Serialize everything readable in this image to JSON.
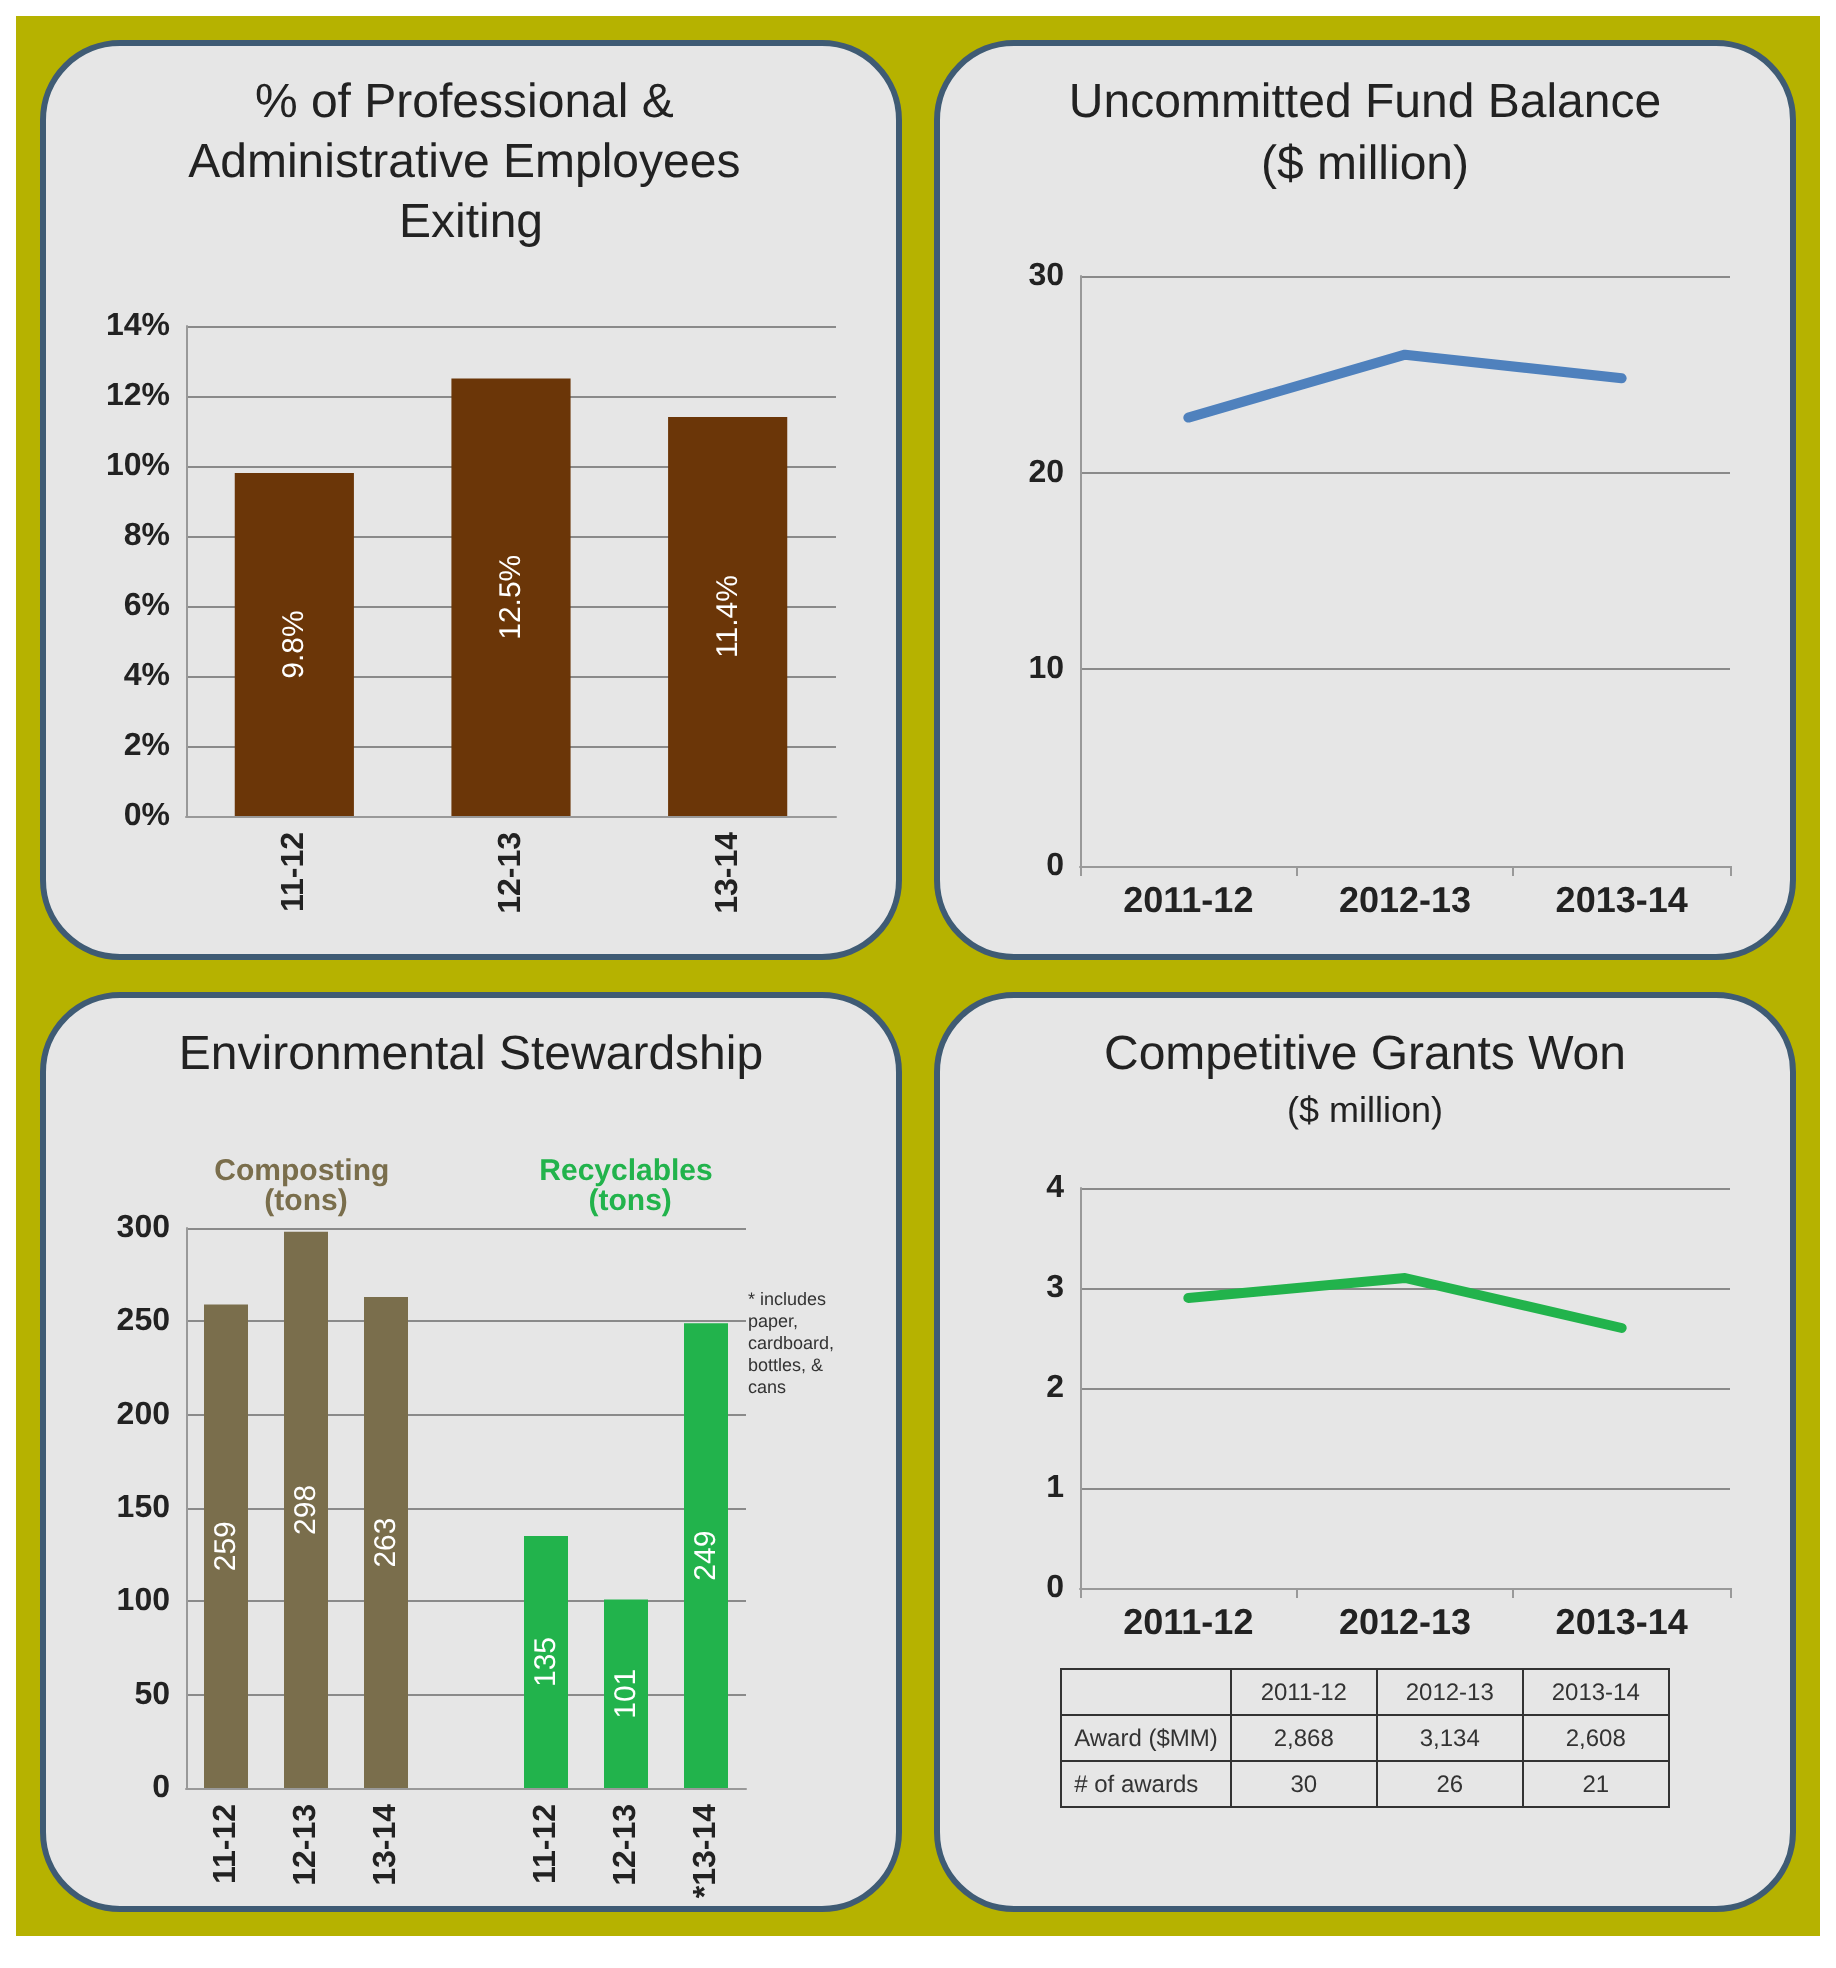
{
  "chart_data": [
    {
      "type": "bar",
      "title": "% of Professional & Administrative Employees Exiting",
      "categories": [
        "11-12",
        "12-13",
        "13-14"
      ],
      "values": [
        9.8,
        12.5,
        11.4
      ],
      "color": "#6b3608",
      "value_labels": [
        "9.8%",
        "12.5%",
        "11.4%"
      ],
      "ylim": [
        0,
        14
      ],
      "yticks": [
        {
          "value": 0,
          "label": "0%"
        },
        {
          "value": 2,
          "label": "2%"
        },
        {
          "value": 4,
          "label": "4%"
        },
        {
          "value": 6,
          "label": "6%"
        },
        {
          "value": 8,
          "label": "8%"
        },
        {
          "value": 10,
          "label": "10%"
        },
        {
          "value": 12,
          "label": "12%"
        },
        {
          "value": 14,
          "label": "14%"
        }
      ],
      "grid": "y"
    },
    {
      "type": "line",
      "title": "Uncommitted Fund Balance",
      "subtitle": "($ million)",
      "categories": [
        "2011-12",
        "2012-13",
        "2013-14"
      ],
      "values": [
        22.8,
        26.0,
        24.8
      ],
      "color": "#4f81bd",
      "ylim": [
        0,
        30
      ],
      "yticks": [
        0,
        10,
        20,
        30
      ],
      "grid": "y",
      "marker": "none"
    },
    {
      "type": "bar",
      "title": "Environmental Stewardship",
      "categories": [
        "11-12",
        "12-13",
        "13-14",
        null,
        "11-12",
        "12-13",
        "*13-14"
      ],
      "series": [
        {
          "name": "Composting (tons)",
          "color": "#7a6e4c",
          "values": [
            259,
            298,
            263,
            null,
            null,
            null,
            null
          ]
        },
        {
          "name": "Recyclables (tons)",
          "color": "#22b34c",
          "values": [
            null,
            null,
            null,
            null,
            135,
            101,
            249
          ]
        }
      ],
      "data_labels": true,
      "ylim": [
        0,
        300
      ],
      "yticks": [
        0,
        50,
        100,
        150,
        200,
        250,
        300
      ],
      "grid": "y",
      "annotations": [
        "* includes paper, cardboard, bottles, & cans"
      ]
    },
    {
      "type": "line",
      "title": "Competitive Grants Won",
      "subtitle": "($ million)",
      "categories": [
        "2011-12",
        "2012-13",
        "2013-14"
      ],
      "values": [
        2.9,
        3.1,
        2.6
      ],
      "color": "#22b34c",
      "ylim": [
        0,
        4
      ],
      "yticks": [
        0,
        1,
        2,
        3,
        4
      ],
      "grid": "y",
      "marker": "none"
    },
    {
      "type": "other",
      "categories": [
        "2011-12",
        "2012-13",
        "2013-14"
      ],
      "data_labels": true,
      "series": [
        {
          "name": "Award ($MM)",
          "values": [
            2868,
            3134,
            2608
          ],
          "value_labels": [
            "2,868",
            "3,134",
            "2,608"
          ]
        },
        {
          "name": "# of awards",
          "values": [
            30,
            26,
            21
          ]
        }
      ]
    }
  ]
}
